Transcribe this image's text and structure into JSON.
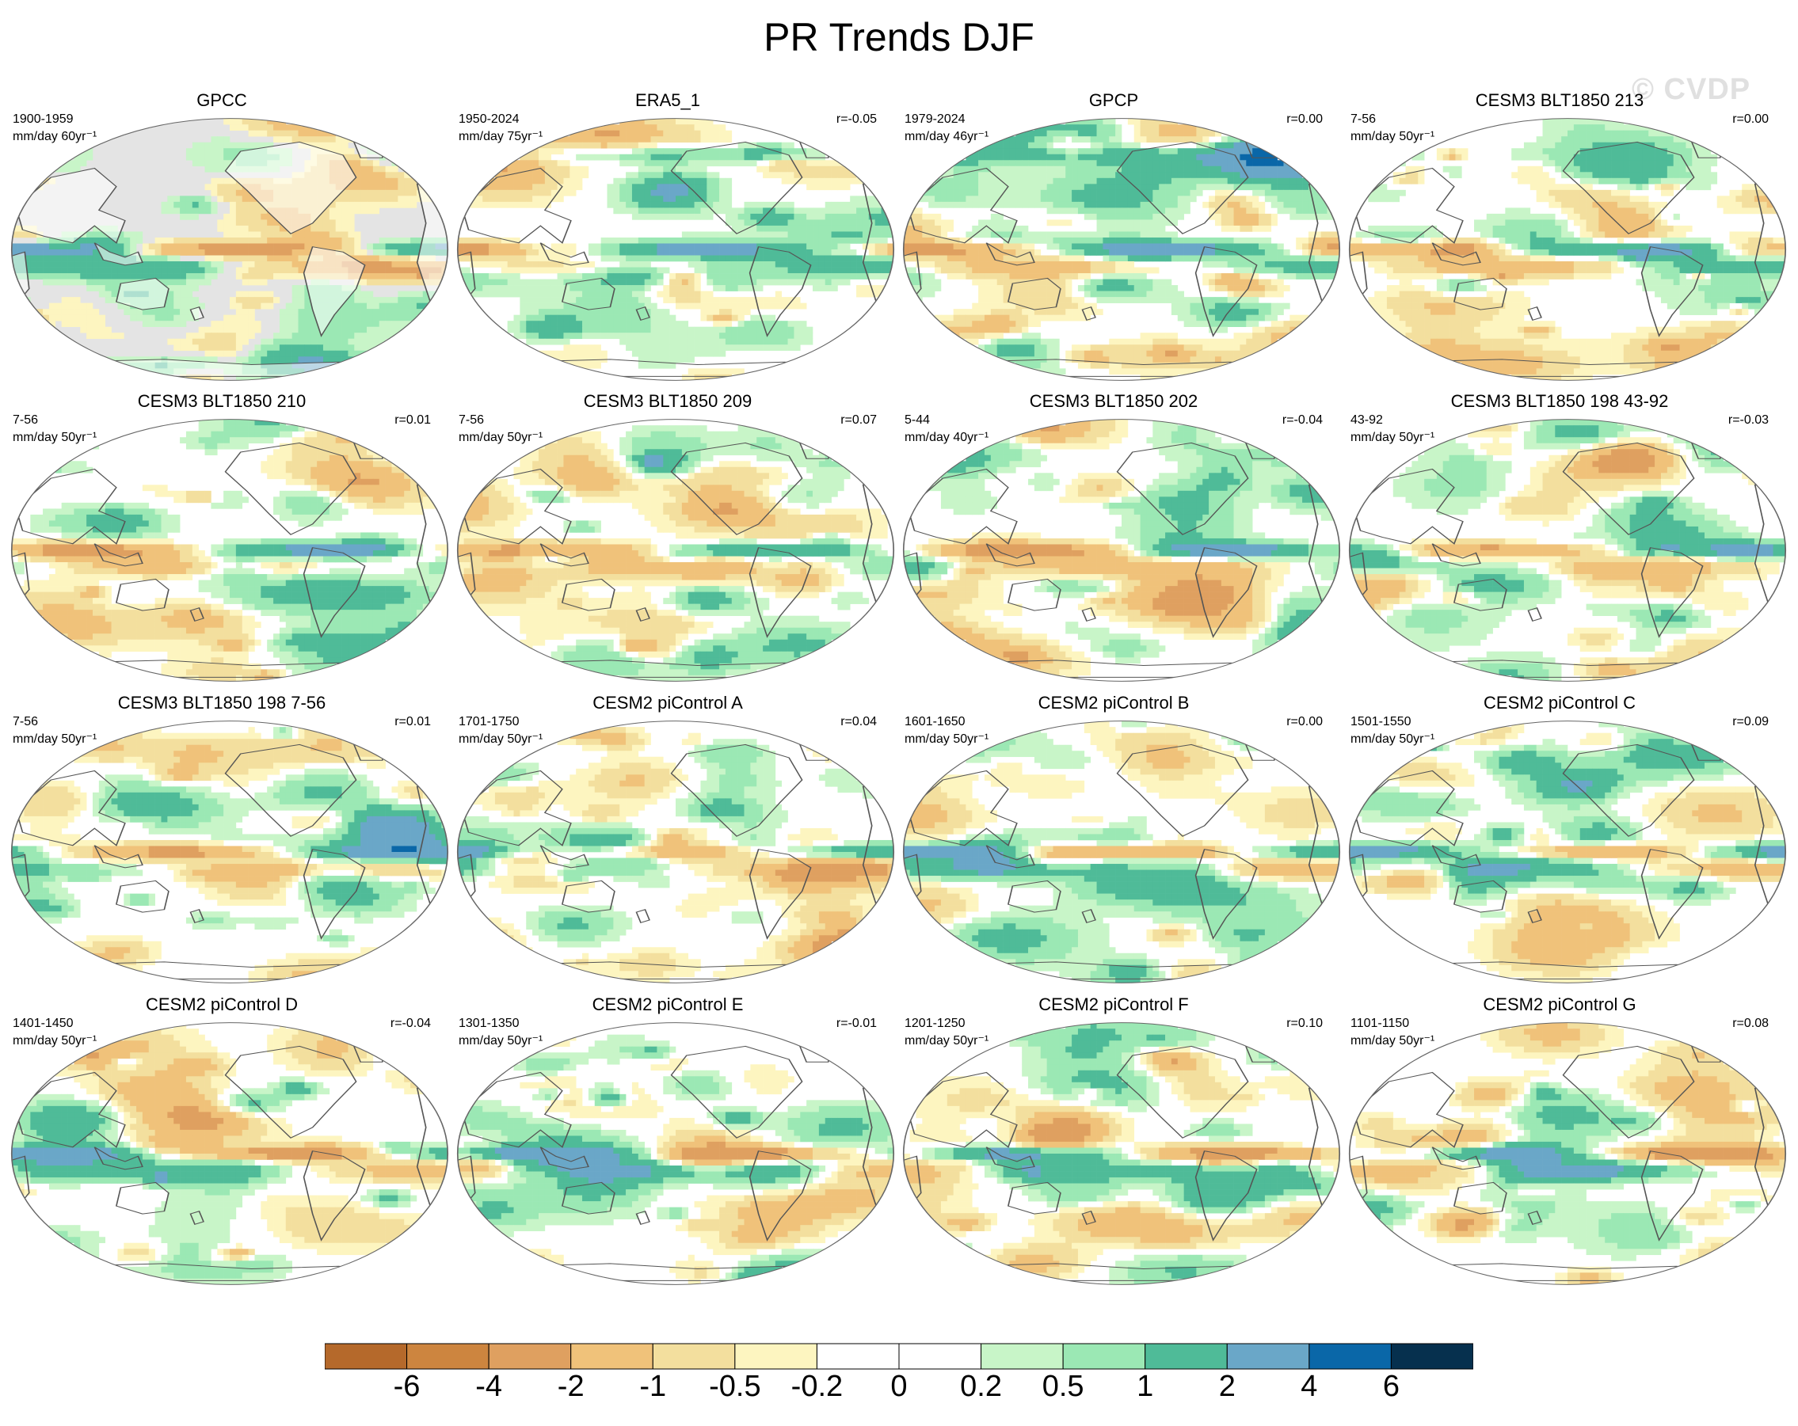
{
  "title": "PR Trends DJF",
  "watermark": "© CVDP",
  "panels": [
    {
      "title": "GPCC",
      "years": "1900-1959",
      "units": "mm/day 60yr⁻¹",
      "corr": "",
      "style": "gpcc",
      "seed": 3
    },
    {
      "title": "ERA5_1",
      "years": "1950-2024",
      "units": "mm/day 75yr⁻¹",
      "corr": "r=-0.05",
      "style": "era5",
      "seed": 7
    },
    {
      "title": "GPCP",
      "years": "1979-2024",
      "units": "mm/day 46yr⁻¹",
      "corr": "r=0.00",
      "style": "gpcp",
      "seed": 11
    },
    {
      "title": "CESM3 BLT1850 213",
      "years": "7-56",
      "units": "mm/day 50yr⁻¹",
      "corr": "r=0.00",
      "style": "model",
      "seed": 13
    },
    {
      "title": "CESM3 BLT1850 210",
      "years": "7-56",
      "units": "mm/day 50yr⁻¹",
      "corr": "r=0.01",
      "style": "model",
      "seed": 17
    },
    {
      "title": "CESM3 BLT1850 209",
      "years": "7-56",
      "units": "mm/day 50yr⁻¹",
      "corr": "r=0.07",
      "style": "model",
      "seed": 19
    },
    {
      "title": "CESM3 BLT1850 202",
      "years": "5-44",
      "units": "mm/day 40yr⁻¹",
      "corr": "r=-0.04",
      "style": "model",
      "seed": 23
    },
    {
      "title": "CESM3 BLT1850 198 43-92",
      "years": "43-92",
      "units": "mm/day 50yr⁻¹",
      "corr": "r=-0.03",
      "style": "model",
      "seed": 29
    },
    {
      "title": "CESM3 BLT1850 198 7-56",
      "years": "7-56",
      "units": "mm/day 50yr⁻¹",
      "corr": "r=0.01",
      "style": "model",
      "seed": 31
    },
    {
      "title": "CESM2 piControl A",
      "years": "1701-1750",
      "units": "mm/day 50yr⁻¹",
      "corr": "r=0.04",
      "style": "model",
      "seed": 37
    },
    {
      "title": "CESM2 piControl B",
      "years": "1601-1650",
      "units": "mm/day 50yr⁻¹",
      "corr": "r=0.00",
      "style": "model",
      "seed": 41
    },
    {
      "title": "CESM2 piControl C",
      "years": "1501-1550",
      "units": "mm/day 50yr⁻¹",
      "corr": "r=0.09",
      "style": "model",
      "seed": 43
    },
    {
      "title": "CESM2 piControl D",
      "years": "1401-1450",
      "units": "mm/day 50yr⁻¹",
      "corr": "r=-0.04",
      "style": "model",
      "seed": 47
    },
    {
      "title": "CESM2 piControl E",
      "years": "1301-1350",
      "units": "mm/day 50yr⁻¹",
      "corr": "r=-0.01",
      "style": "model",
      "seed": 53
    },
    {
      "title": "CESM2 piControl F",
      "years": "1201-1250",
      "units": "mm/day 50yr⁻¹",
      "corr": "r=0.10",
      "style": "model",
      "seed": 59
    },
    {
      "title": "CESM2 piControl G",
      "years": "1101-1150",
      "units": "mm/day 50yr⁻¹",
      "corr": "r=0.08",
      "style": "model",
      "seed": 61
    }
  ],
  "colorbar": {
    "colors": [
      "#b5692b",
      "#cd853f",
      "#dfa060",
      "#f0c27a",
      "#f3df9e",
      "#fdf5c0",
      "#ffffff",
      "#ffffff",
      "#c8f5c8",
      "#9be8b4",
      "#4fbb98",
      "#6aa7c8",
      "#0a67a8",
      "#06304e"
    ],
    "labels": [
      "-6",
      "-4",
      "-2",
      "-1",
      "-0.5",
      "-0.2",
      "0",
      "0.2",
      "0.5",
      "1",
      "2",
      "4",
      "6"
    ]
  },
  "land_mask_color": "#e4e4e4"
}
